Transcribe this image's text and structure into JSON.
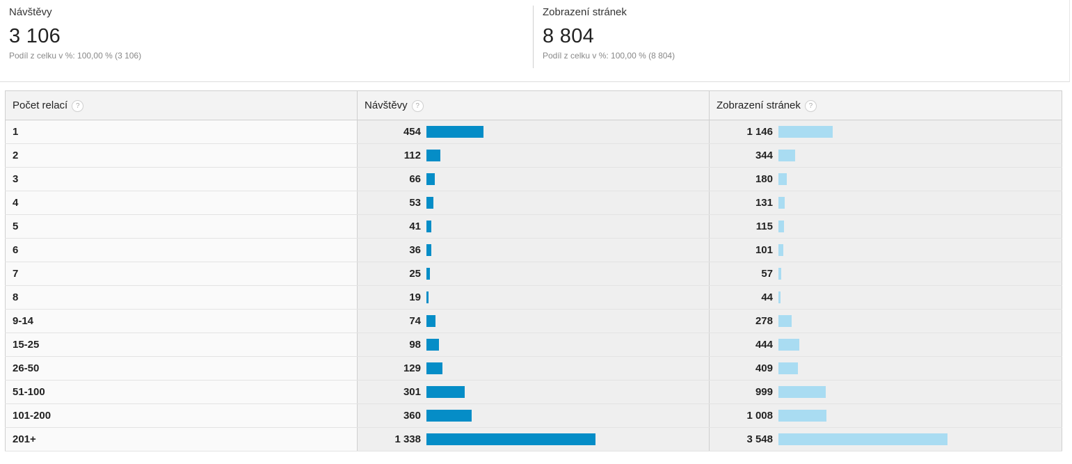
{
  "summary": {
    "visits": {
      "label": "Návštěvy",
      "value": "3 106",
      "share": "Podíl z celku v %: 100,00 % (3 106)"
    },
    "pageviews": {
      "label": "Zobrazení stránek",
      "value": "8 804",
      "share": "Podíl z celku v %: 100,00 % (8 804)"
    }
  },
  "table": {
    "columns": [
      {
        "label": "Počet relací",
        "help": "?"
      },
      {
        "label": "Návštěvy",
        "help": "?"
      },
      {
        "label": "Zobrazení stránek",
        "help": "?"
      }
    ],
    "colors": {
      "visits_bar": "#058dc7",
      "views_bar": "#a9dcf2"
    },
    "rows": [
      {
        "dim": "1",
        "visits": "454",
        "visits_n": 454,
        "views": "1 146",
        "views_n": 1146
      },
      {
        "dim": "2",
        "visits": "112",
        "visits_n": 112,
        "views": "344",
        "views_n": 344
      },
      {
        "dim": "3",
        "visits": "66",
        "visits_n": 66,
        "views": "180",
        "views_n": 180
      },
      {
        "dim": "4",
        "visits": "53",
        "visits_n": 53,
        "views": "131",
        "views_n": 131
      },
      {
        "dim": "5",
        "visits": "41",
        "visits_n": 41,
        "views": "115",
        "views_n": 115
      },
      {
        "dim": "6",
        "visits": "36",
        "visits_n": 36,
        "views": "101",
        "views_n": 101
      },
      {
        "dim": "7",
        "visits": "25",
        "visits_n": 25,
        "views": "57",
        "views_n": 57
      },
      {
        "dim": "8",
        "visits": "19",
        "visits_n": 19,
        "views": "44",
        "views_n": 44
      },
      {
        "dim": "9-14",
        "visits": "74",
        "visits_n": 74,
        "views": "278",
        "views_n": 278
      },
      {
        "dim": "15-25",
        "visits": "98",
        "visits_n": 98,
        "views": "444",
        "views_n": 444
      },
      {
        "dim": "26-50",
        "visits": "129",
        "visits_n": 129,
        "views": "409",
        "views_n": 409
      },
      {
        "dim": "51-100",
        "visits": "301",
        "visits_n": 301,
        "views": "999",
        "views_n": 999
      },
      {
        "dim": "101-200",
        "visits": "360",
        "visits_n": 360,
        "views": "1 008",
        "views_n": 1008
      },
      {
        "dim": "201+",
        "visits": "1 338",
        "visits_n": 1338,
        "views": "3 548",
        "views_n": 3548
      }
    ]
  }
}
